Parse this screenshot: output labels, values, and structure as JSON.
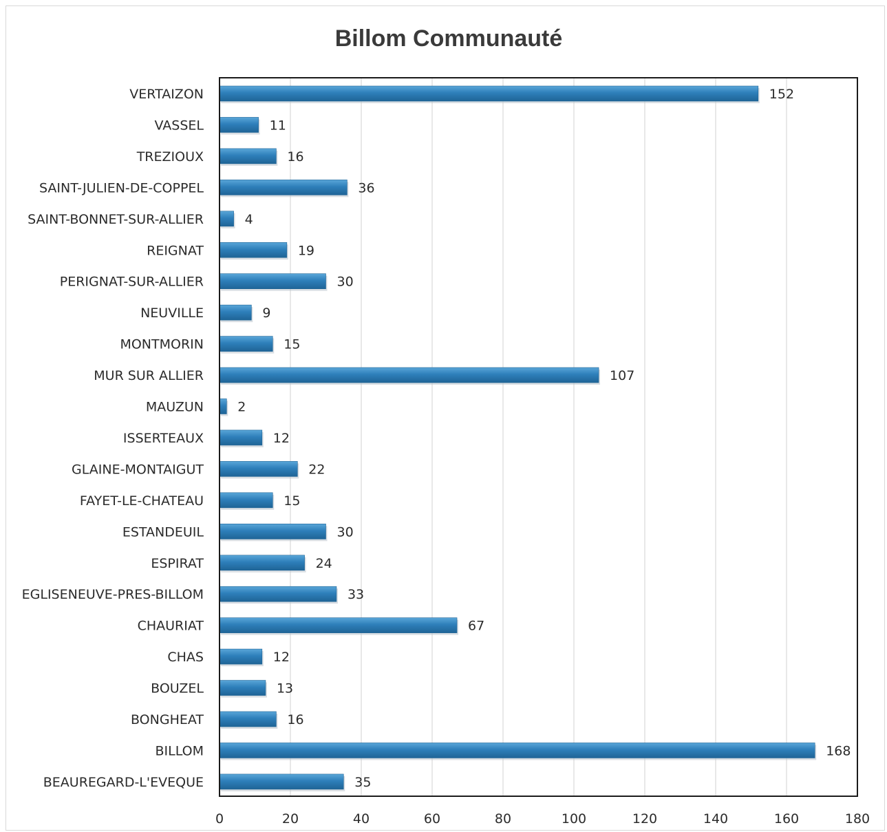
{
  "chart_data": {
    "type": "bar",
    "orientation": "horizontal",
    "title": "Billom Communauté",
    "xlabel": "",
    "ylabel": "",
    "xlim": [
      0,
      180
    ],
    "x_ticks": [
      "0",
      "20",
      "40",
      "60",
      "80",
      "100",
      "120",
      "140",
      "160",
      "180"
    ],
    "grid": true,
    "bar_color": "#2e7fba",
    "categories": [
      "VERTAIZON",
      "VASSEL",
      "TREZIOUX",
      "SAINT-JULIEN-DE-COPPEL",
      "SAINT-BONNET-SUR-ALLIER",
      "REIGNAT",
      "PERIGNAT-SUR-ALLIER",
      "NEUVILLE",
      "MONTMORIN",
      "MUR SUR ALLIER",
      "MAUZUN",
      "ISSERTEAUX",
      "GLAINE-MONTAIGUT",
      "FAYET-LE-CHATEAU",
      "ESTANDEUIL",
      "ESPIRAT",
      "EGLISENEUVE-PRES-BILLOM",
      "CHAURIAT",
      "CHAS",
      "BOUZEL",
      "BONGHEAT",
      "BILLOM",
      "BEAUREGARD-L'EVEQUE"
    ],
    "values": [
      152,
      11,
      16,
      36,
      4,
      19,
      30,
      9,
      15,
      107,
      2,
      12,
      22,
      15,
      30,
      24,
      33,
      67,
      12,
      13,
      16,
      168,
      35
    ]
  }
}
